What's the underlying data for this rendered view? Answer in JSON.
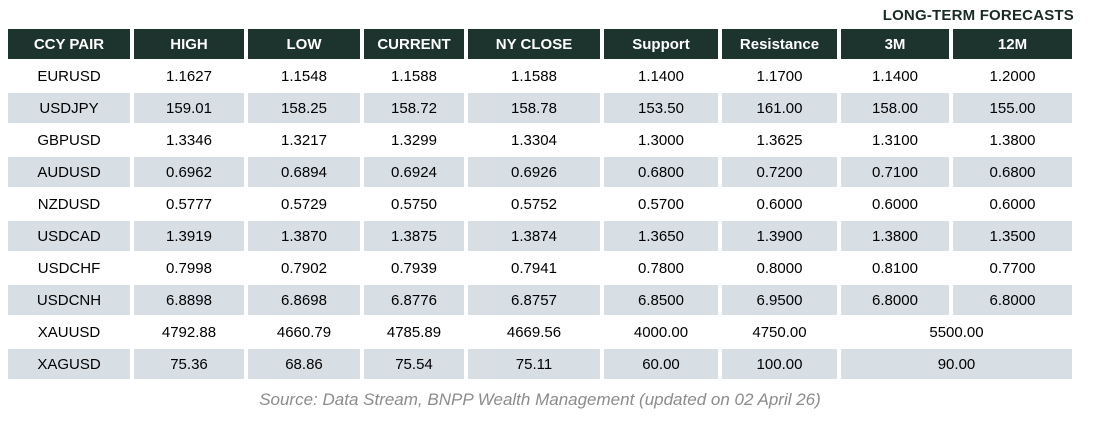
{
  "header": {
    "forecast_group_label": "LONG-TERM FORECASTS"
  },
  "table": {
    "columns": [
      "CCY PAIR",
      "HIGH",
      "LOW",
      "CURRENT",
      "NY CLOSE",
      "Support",
      "Resistance",
      "3M",
      "12M"
    ],
    "rows": [
      {
        "pair": "EURUSD",
        "high": "1.1627",
        "low": "1.1548",
        "current": "1.1588",
        "ny_close": "1.1588",
        "support": "1.1400",
        "resistance": "1.1700",
        "m3": "1.1400",
        "m12": "1.2000"
      },
      {
        "pair": "USDJPY",
        "high": "159.01",
        "low": "158.25",
        "current": "158.72",
        "ny_close": "158.78",
        "support": "153.50",
        "resistance": "161.00",
        "m3": "158.00",
        "m12": "155.00"
      },
      {
        "pair": "GBPUSD",
        "high": "1.3346",
        "low": "1.3217",
        "current": "1.3299",
        "ny_close": "1.3304",
        "support": "1.3000",
        "resistance": "1.3625",
        "m3": "1.3100",
        "m12": "1.3800"
      },
      {
        "pair": "AUDUSD",
        "high": "0.6962",
        "low": "0.6894",
        "current": "0.6924",
        "ny_close": "0.6926",
        "support": "0.6800",
        "resistance": "0.7200",
        "m3": "0.7100",
        "m12": "0.6800"
      },
      {
        "pair": "NZDUSD",
        "high": "0.5777",
        "low": "0.5729",
        "current": "0.5750",
        "ny_close": "0.5752",
        "support": "0.5700",
        "resistance": "0.6000",
        "m3": "0.6000",
        "m12": "0.6000"
      },
      {
        "pair": "USDCAD",
        "high": "1.3919",
        "low": "1.3870",
        "current": "1.3875",
        "ny_close": "1.3874",
        "support": "1.3650",
        "resistance": "1.3900",
        "m3": "1.3800",
        "m12": "1.3500"
      },
      {
        "pair": "USDCHF",
        "high": "0.7998",
        "low": "0.7902",
        "current": "0.7939",
        "ny_close": "0.7941",
        "support": "0.7800",
        "resistance": "0.8000",
        "m3": "0.8100",
        "m12": "0.7700"
      },
      {
        "pair": "USDCNH",
        "high": "6.8898",
        "low": "6.8698",
        "current": "6.8776",
        "ny_close": "6.8757",
        "support": "6.8500",
        "resistance": "6.9500",
        "m3": "6.8000",
        "m12": "6.8000"
      },
      {
        "pair": "XAUUSD",
        "high": "4792.88",
        "low": "4660.79",
        "current": "4785.89",
        "ny_close": "4669.56",
        "support": "4000.00",
        "resistance": "4750.00",
        "forecast_merged": "5500.00"
      },
      {
        "pair": "XAGUSD",
        "high": "75.36",
        "low": "68.86",
        "current": "75.54",
        "ny_close": "75.11",
        "support": "60.00",
        "resistance": "100.00",
        "forecast_merged": "90.00"
      }
    ]
  },
  "footer": {
    "source": "Source: Data Stream, BNPP Wealth Management (updated on 02 April 26)"
  },
  "colors": {
    "header_bg": "#1d332d",
    "header_text": "#ffffff",
    "row_alt_bg": "#d7dfe5",
    "body_text": "#000000",
    "forecast_label_text": "#1a2b26",
    "source_text": "#8c8c8c"
  },
  "chart_data": {
    "type": "table",
    "title": "LONG-TERM FORECASTS",
    "columns": [
      "CCY PAIR",
      "HIGH",
      "LOW",
      "CURRENT",
      "NY CLOSE",
      "Support",
      "Resistance",
      "3M",
      "12M"
    ],
    "rows": [
      [
        "EURUSD",
        1.1627,
        1.1548,
        1.1588,
        1.1588,
        1.14,
        1.17,
        1.14,
        1.2
      ],
      [
        "USDJPY",
        159.01,
        158.25,
        158.72,
        158.78,
        153.5,
        161.0,
        158.0,
        155.0
      ],
      [
        "GBPUSD",
        1.3346,
        1.3217,
        1.3299,
        1.3304,
        1.3,
        1.3625,
        1.31,
        1.38
      ],
      [
        "AUDUSD",
        0.6962,
        0.6894,
        0.6924,
        0.6926,
        0.68,
        0.72,
        0.71,
        0.68
      ],
      [
        "NZDUSD",
        0.5777,
        0.5729,
        0.575,
        0.5752,
        0.57,
        0.6,
        0.6,
        0.6
      ],
      [
        "USDCAD",
        1.3919,
        1.387,
        1.3875,
        1.3874,
        1.365,
        1.39,
        1.38,
        1.35
      ],
      [
        "USDCHF",
        0.7998,
        0.7902,
        0.7939,
        0.7941,
        0.78,
        0.8,
        0.81,
        0.77
      ],
      [
        "USDCNH",
        6.8898,
        6.8698,
        6.8776,
        6.8757,
        6.85,
        6.95,
        6.8,
        6.8
      ],
      [
        "XAUUSD",
        4792.88,
        4660.79,
        4785.89,
        4669.56,
        4000.0,
        4750.0,
        5500.0,
        5500.0
      ],
      [
        "XAGUSD",
        75.36,
        68.86,
        75.54,
        75.11,
        60.0,
        100.0,
        90.0,
        90.0
      ]
    ],
    "notes": "3M and 12M cells are merged into a single forecast value for XAUUSD (5500.00) and XAGUSD (90.00)",
    "annotations": [
      "Source: Data Stream, BNPP Wealth Management (updated on 02 April 26)"
    ]
  }
}
